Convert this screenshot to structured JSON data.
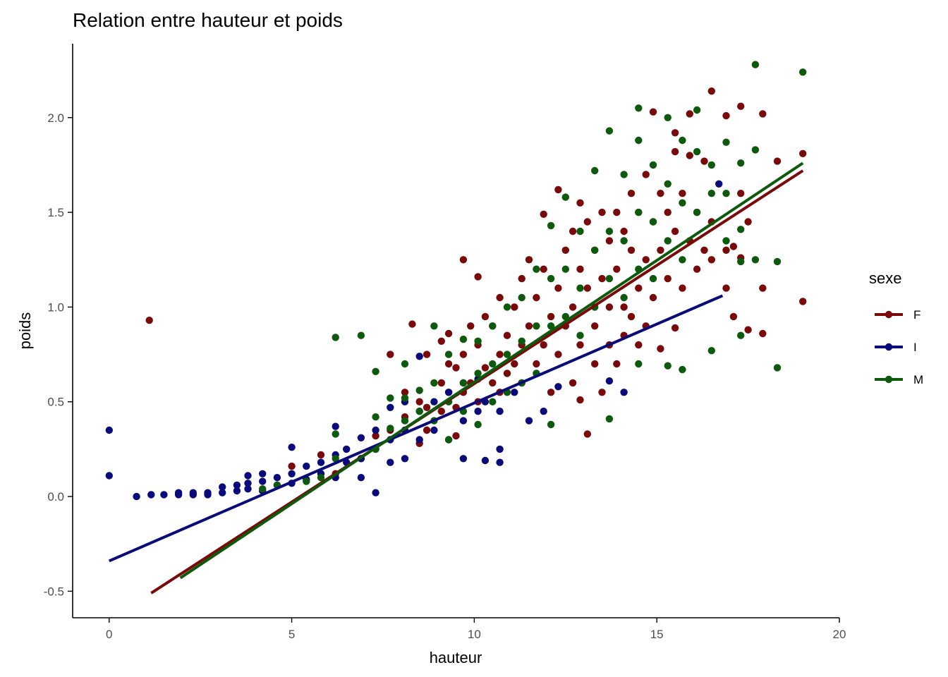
{
  "chart_data": {
    "type": "scatter",
    "title": "Relation entre hauteur et poids",
    "xlabel": "hauteur",
    "ylabel": "poids",
    "xlim": [
      -1,
      20
    ],
    "ylim": [
      -0.64,
      2.39
    ],
    "xticks": [
      0,
      5,
      10,
      15,
      20
    ],
    "yticks": [
      -0.5,
      0.0,
      0.5,
      1.0,
      1.5,
      2.0
    ],
    "ytick_labels": [
      "-0.5",
      "0.0",
      "0.5",
      "1.0",
      "1.5",
      "2.0"
    ],
    "grid": false,
    "legend": {
      "title": "sexe",
      "position": "right"
    },
    "series": [
      {
        "name": "F",
        "color": "#7a0a0a",
        "fit": {
          "x": [
            1.15,
            19.0
          ],
          "y": [
            -0.51,
            1.72
          ]
        },
        "points": [
          [
            1.1,
            0.93
          ],
          [
            5.0,
            0.16
          ],
          [
            5.8,
            0.22
          ],
          [
            6.2,
            0.12
          ],
          [
            6.9,
            0.2
          ],
          [
            7.3,
            0.32
          ],
          [
            7.7,
            0.75
          ],
          [
            7.7,
            0.35
          ],
          [
            8.1,
            0.55
          ],
          [
            8.1,
            0.42
          ],
          [
            8.3,
            0.91
          ],
          [
            8.5,
            0.5
          ],
          [
            8.5,
            0.28
          ],
          [
            8.7,
            0.47
          ],
          [
            8.7,
            0.75
          ],
          [
            8.7,
            0.35
          ],
          [
            9.1,
            0.6
          ],
          [
            9.1,
            0.82
          ],
          [
            9.1,
            0.45
          ],
          [
            9.3,
            0.55
          ],
          [
            9.3,
            0.86
          ],
          [
            9.3,
            0.7
          ],
          [
            9.5,
            0.47
          ],
          [
            9.5,
            0.32
          ],
          [
            9.5,
            0.68
          ],
          [
            9.7,
            1.25
          ],
          [
            9.7,
            0.55
          ],
          [
            9.7,
            0.75
          ],
          [
            9.9,
            0.6
          ],
          [
            9.9,
            0.9
          ],
          [
            10.1,
            1.16
          ],
          [
            10.1,
            0.8
          ],
          [
            10.1,
            0.5
          ],
          [
            10.3,
            0.68
          ],
          [
            10.3,
            0.95
          ],
          [
            10.5,
            0.6
          ],
          [
            10.5,
            0.9
          ],
          [
            10.7,
            0.75
          ],
          [
            10.7,
            0.55
          ],
          [
            10.7,
            1.05
          ],
          [
            10.9,
            0.85
          ],
          [
            10.9,
            0.65
          ],
          [
            11.1,
            1.0
          ],
          [
            11.1,
            0.7
          ],
          [
            11.3,
            0.8
          ],
          [
            11.3,
            1.15
          ],
          [
            11.3,
            0.6
          ],
          [
            11.5,
            0.9
          ],
          [
            11.5,
            1.25
          ],
          [
            11.7,
            0.7
          ],
          [
            11.7,
            1.05
          ],
          [
            11.9,
            1.49
          ],
          [
            11.9,
            0.8
          ],
          [
            11.9,
            1.2
          ],
          [
            12.1,
            0.55
          ],
          [
            12.1,
            0.95
          ],
          [
            12.3,
            1.62
          ],
          [
            12.3,
            1.1
          ],
          [
            12.3,
            0.75
          ],
          [
            12.5,
            0.9
          ],
          [
            12.5,
            1.3
          ],
          [
            12.7,
            1.0
          ],
          [
            12.7,
            0.6
          ],
          [
            12.7,
            1.4
          ],
          [
            12.9,
            0.51
          ],
          [
            12.9,
            1.2
          ],
          [
            12.9,
            1.55
          ],
          [
            12.9,
            0.8
          ],
          [
            13.1,
            0.33
          ],
          [
            13.1,
            1.1
          ],
          [
            13.1,
            1.45
          ],
          [
            13.3,
            0.9
          ],
          [
            13.3,
            1.3
          ],
          [
            13.3,
            0.7
          ],
          [
            13.5,
            1.15
          ],
          [
            13.5,
            1.5
          ],
          [
            13.5,
            0.55
          ],
          [
            13.7,
            1.0
          ],
          [
            13.7,
            1.35
          ],
          [
            13.7,
            0.8
          ],
          [
            13.9,
            1.5
          ],
          [
            13.9,
            1.2
          ],
          [
            13.9,
            0.7
          ],
          [
            14.1,
            1.4
          ],
          [
            14.1,
            1.0
          ],
          [
            14.1,
            0.85
          ],
          [
            14.3,
            1.3
          ],
          [
            14.3,
            1.6
          ],
          [
            14.3,
            0.95
          ],
          [
            14.5,
            1.5
          ],
          [
            14.5,
            1.1
          ],
          [
            14.5,
            0.8
          ],
          [
            14.7,
            1.25
          ],
          [
            14.7,
            1.7
          ],
          [
            14.7,
            0.9
          ],
          [
            14.9,
            1.45
          ],
          [
            14.9,
            2.03
          ],
          [
            14.9,
            1.05
          ],
          [
            15.1,
            1.3
          ],
          [
            15.1,
            1.6
          ],
          [
            15.1,
            0.78
          ],
          [
            15.3,
            1.5
          ],
          [
            15.3,
            1.15
          ],
          [
            15.5,
            1.92
          ],
          [
            15.5,
            1.82
          ],
          [
            15.5,
            1.4
          ],
          [
            15.5,
            0.89
          ],
          [
            15.7,
            1.6
          ],
          [
            15.7,
            1.1
          ],
          [
            15.9,
            2.02
          ],
          [
            15.9,
            1.8
          ],
          [
            15.9,
            1.35
          ],
          [
            16.1,
            1.5
          ],
          [
            16.1,
            1.2
          ],
          [
            16.3,
            1.77
          ],
          [
            16.3,
            1.3
          ],
          [
            16.5,
            2.14
          ],
          [
            16.5,
            1.45
          ],
          [
            16.5,
            1.25
          ],
          [
            16.9,
            2.01
          ],
          [
            16.9,
            1.3
          ],
          [
            16.9,
            1.1
          ],
          [
            17.1,
            1.32
          ],
          [
            17.1,
            0.95
          ],
          [
            17.3,
            2.06
          ],
          [
            17.3,
            1.26
          ],
          [
            17.3,
            1.6
          ],
          [
            17.5,
            1.45
          ],
          [
            17.5,
            0.88
          ],
          [
            17.9,
            2.02
          ],
          [
            17.9,
            1.1
          ],
          [
            17.9,
            0.86
          ],
          [
            18.3,
            1.77
          ],
          [
            19.0,
            1.81
          ],
          [
            19.0,
            1.03
          ]
        ]
      },
      {
        "name": "I",
        "color": "#0a0a7a",
        "fit": {
          "x": [
            0.0,
            16.8
          ],
          "y": [
            -0.34,
            1.06
          ]
        },
        "points": [
          [
            0.0,
            0.35
          ],
          [
            0.0,
            0.11
          ],
          [
            0.75,
            0.0
          ],
          [
            1.15,
            0.01
          ],
          [
            1.5,
            0.01
          ],
          [
            1.9,
            0.01
          ],
          [
            1.9,
            0.02
          ],
          [
            2.3,
            0.02
          ],
          [
            2.3,
            0.01
          ],
          [
            2.7,
            0.02
          ],
          [
            2.7,
            0.01
          ],
          [
            3.1,
            0.05
          ],
          [
            3.1,
            0.02
          ],
          [
            3.5,
            0.06
          ],
          [
            3.5,
            0.03
          ],
          [
            3.8,
            0.11
          ],
          [
            3.8,
            0.07
          ],
          [
            3.8,
            0.04
          ],
          [
            4.2,
            0.12
          ],
          [
            4.2,
            0.08
          ],
          [
            4.2,
            0.03
          ],
          [
            4.6,
            0.1
          ],
          [
            4.6,
            0.06
          ],
          [
            5.0,
            0.26
          ],
          [
            5.0,
            0.12
          ],
          [
            5.0,
            0.07
          ],
          [
            5.4,
            0.16
          ],
          [
            5.4,
            0.09
          ],
          [
            5.8,
            0.18
          ],
          [
            5.8,
            0.12
          ],
          [
            6.2,
            0.37
          ],
          [
            6.2,
            0.22
          ],
          [
            6.2,
            0.1
          ],
          [
            6.5,
            0.25
          ],
          [
            6.5,
            0.18
          ],
          [
            6.9,
            0.31
          ],
          [
            6.9,
            0.2
          ],
          [
            6.9,
            0.1
          ],
          [
            7.3,
            0.35
          ],
          [
            7.3,
            0.25
          ],
          [
            7.3,
            0.02
          ],
          [
            7.7,
            0.47
          ],
          [
            7.7,
            0.3
          ],
          [
            7.7,
            0.18
          ],
          [
            8.1,
            0.5
          ],
          [
            8.1,
            0.35
          ],
          [
            8.1,
            0.2
          ],
          [
            8.5,
            0.74
          ],
          [
            8.5,
            0.45
          ],
          [
            8.5,
            0.3
          ],
          [
            8.9,
            0.5
          ],
          [
            8.9,
            0.35
          ],
          [
            9.3,
            0.55
          ],
          [
            9.3,
            0.3
          ],
          [
            9.7,
            0.6
          ],
          [
            9.7,
            0.4
          ],
          [
            9.7,
            0.2
          ],
          [
            10.1,
            0.62
          ],
          [
            10.1,
            0.45
          ],
          [
            10.3,
            0.19
          ],
          [
            10.3,
            0.5
          ],
          [
            10.7,
            0.45
          ],
          [
            10.7,
            0.18
          ],
          [
            10.7,
            0.25
          ],
          [
            11.1,
            0.55
          ],
          [
            11.5,
            0.4
          ],
          [
            11.9,
            0.45
          ],
          [
            12.3,
            0.58
          ],
          [
            13.7,
            0.61
          ],
          [
            14.1,
            0.55
          ],
          [
            16.7,
            1.65
          ]
        ]
      },
      {
        "name": "M",
        "color": "#0d5a0d",
        "fit": {
          "x": [
            1.95,
            19.0
          ],
          "y": [
            -0.43,
            1.76
          ]
        },
        "points": [
          [
            4.2,
            0.04
          ],
          [
            4.6,
            0.06
          ],
          [
            5.4,
            0.08
          ],
          [
            5.8,
            0.1
          ],
          [
            6.2,
            0.84
          ],
          [
            6.2,
            0.33
          ],
          [
            6.2,
            0.2
          ],
          [
            6.9,
            0.85
          ],
          [
            7.3,
            0.66
          ],
          [
            7.3,
            0.42
          ],
          [
            7.3,
            0.25
          ],
          [
            7.7,
            0.36
          ],
          [
            7.7,
            0.52
          ],
          [
            8.1,
            0.7
          ],
          [
            8.1,
            0.52
          ],
          [
            8.1,
            0.4
          ],
          [
            8.5,
            0.56
          ],
          [
            8.5,
            0.45
          ],
          [
            8.9,
            0.9
          ],
          [
            8.9,
            0.6
          ],
          [
            8.9,
            0.4
          ],
          [
            9.3,
            0.75
          ],
          [
            9.3,
            0.5
          ],
          [
            9.3,
            0.3
          ],
          [
            9.7,
            0.83
          ],
          [
            9.7,
            0.6
          ],
          [
            9.7,
            0.45
          ],
          [
            10.1,
            0.82
          ],
          [
            10.1,
            0.65
          ],
          [
            10.1,
            0.38
          ],
          [
            10.5,
            0.9
          ],
          [
            10.5,
            0.7
          ],
          [
            10.5,
            0.5
          ],
          [
            10.9,
            1.0
          ],
          [
            10.9,
            0.75
          ],
          [
            10.9,
            0.55
          ],
          [
            11.3,
            1.05
          ],
          [
            11.3,
            0.82
          ],
          [
            11.3,
            0.6
          ],
          [
            11.7,
            1.2
          ],
          [
            11.7,
            0.9
          ],
          [
            11.7,
            0.65
          ],
          [
            12.1,
            1.43
          ],
          [
            12.1,
            1.15
          ],
          [
            12.1,
            0.9
          ],
          [
            12.1,
            0.38
          ],
          [
            12.5,
            1.58
          ],
          [
            12.5,
            1.2
          ],
          [
            12.5,
            0.95
          ],
          [
            12.9,
            1.4
          ],
          [
            12.9,
            1.1
          ],
          [
            12.9,
            0.85
          ],
          [
            13.3,
            1.72
          ],
          [
            13.3,
            1.3
          ],
          [
            13.3,
            1.0
          ],
          [
            13.7,
            1.93
          ],
          [
            13.7,
            1.4
          ],
          [
            13.7,
            1.15
          ],
          [
            13.7,
            0.41
          ],
          [
            14.1,
            1.7
          ],
          [
            14.1,
            1.35
          ],
          [
            14.1,
            1.05
          ],
          [
            14.5,
            2.05
          ],
          [
            14.5,
            1.88
          ],
          [
            14.5,
            1.5
          ],
          [
            14.5,
            1.2
          ],
          [
            14.5,
            0.7
          ],
          [
            14.9,
            1.75
          ],
          [
            14.9,
            1.45
          ],
          [
            14.9,
            1.15
          ],
          [
            15.3,
            2.0
          ],
          [
            15.3,
            1.65
          ],
          [
            15.3,
            1.35
          ],
          [
            15.3,
            0.69
          ],
          [
            15.7,
            1.88
          ],
          [
            15.7,
            1.55
          ],
          [
            15.7,
            1.25
          ],
          [
            15.7,
            0.67
          ],
          [
            16.1,
            2.04
          ],
          [
            16.1,
            1.82
          ],
          [
            16.1,
            1.5
          ],
          [
            16.5,
            1.75
          ],
          [
            16.5,
            1.6
          ],
          [
            16.5,
            0.77
          ],
          [
            16.9,
            1.87
          ],
          [
            16.9,
            1.6
          ],
          [
            16.9,
            1.35
          ],
          [
            17.3,
            1.76
          ],
          [
            17.3,
            1.41
          ],
          [
            17.3,
            1.24
          ],
          [
            17.3,
            0.85
          ],
          [
            17.7,
            2.28
          ],
          [
            17.7,
            1.83
          ],
          [
            17.7,
            1.25
          ],
          [
            18.3,
            1.24
          ],
          [
            18.3,
            0.68
          ],
          [
            19.0,
            2.24
          ]
        ]
      }
    ]
  }
}
